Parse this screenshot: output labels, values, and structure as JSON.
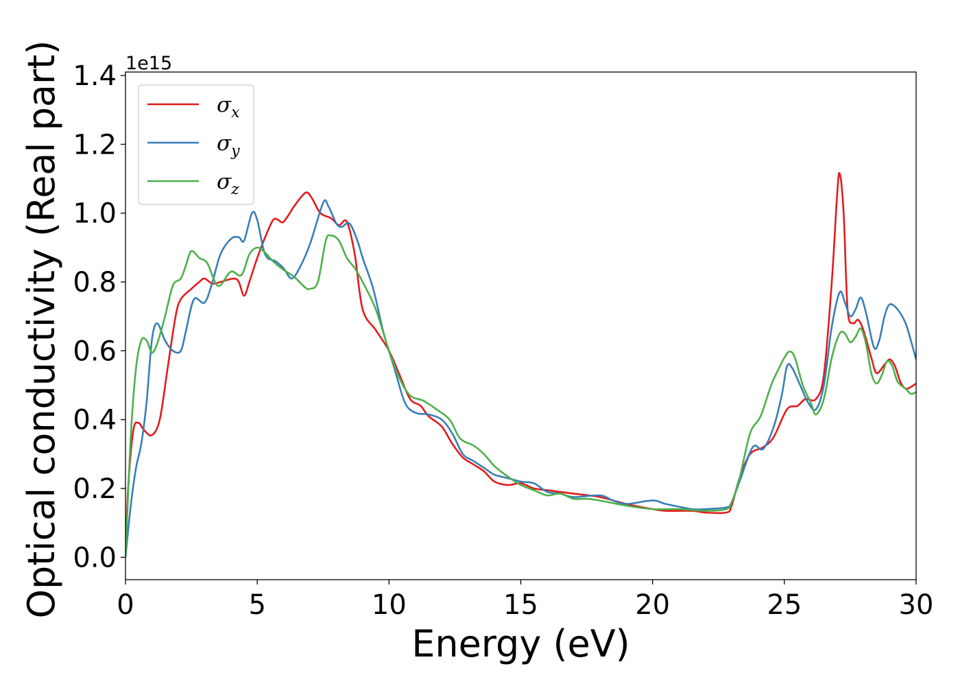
{
  "chart_data": {
    "type": "line",
    "xlabel": "Energy (eV)",
    "ylabel": "Optical conductivity (Real part)",
    "y_offset_text": "1e15",
    "xlim": [
      0,
      30
    ],
    "ylim": [
      -0.065,
      1.41
    ],
    "x_ticks": [
      0,
      5,
      10,
      15,
      20,
      25,
      30
    ],
    "x_tick_labels": [
      "0",
      "5",
      "10",
      "15",
      "20",
      "25",
      "30"
    ],
    "y_ticks": [
      0.0,
      0.2,
      0.4,
      0.6,
      0.8,
      1.0,
      1.2,
      1.4
    ],
    "y_tick_labels": [
      "0.0",
      "0.2",
      "0.4",
      "0.6",
      "0.8",
      "1.0",
      "1.2",
      "1.4"
    ],
    "grid": false,
    "legend": "top-left",
    "series": [
      {
        "name": "σx",
        "legend_main": "σ",
        "legend_sub": "x",
        "color": "#e41a1c",
        "points": [
          [
            0,
            0
          ],
          [
            0.1,
            0.2
          ],
          [
            0.3,
            0.37
          ],
          [
            0.5,
            0.39
          ],
          [
            0.7,
            0.37
          ],
          [
            1.0,
            0.355
          ],
          [
            1.3,
            0.4
          ],
          [
            1.6,
            0.55
          ],
          [
            1.9,
            0.7
          ],
          [
            2.1,
            0.75
          ],
          [
            2.5,
            0.78
          ],
          [
            2.8,
            0.8
          ],
          [
            3.0,
            0.81
          ],
          [
            3.3,
            0.795
          ],
          [
            3.6,
            0.8
          ],
          [
            4.1,
            0.81
          ],
          [
            4.3,
            0.8
          ],
          [
            4.5,
            0.76
          ],
          [
            4.7,
            0.8
          ],
          [
            5.0,
            0.87
          ],
          [
            5.3,
            0.93
          ],
          [
            5.6,
            0.98
          ],
          [
            5.8,
            0.98
          ],
          [
            6.0,
            0.975
          ],
          [
            6.4,
            1.02
          ],
          [
            6.7,
            1.05
          ],
          [
            6.9,
            1.06
          ],
          [
            7.1,
            1.04
          ],
          [
            7.4,
            1.0
          ],
          [
            7.8,
            0.985
          ],
          [
            8.1,
            0.965
          ],
          [
            8.4,
            0.975
          ],
          [
            8.7,
            0.88
          ],
          [
            9.0,
            0.72
          ],
          [
            9.5,
            0.66
          ],
          [
            10.0,
            0.6
          ],
          [
            10.4,
            0.53
          ],
          [
            10.8,
            0.46
          ],
          [
            11.2,
            0.44
          ],
          [
            11.5,
            0.41
          ],
          [
            12.0,
            0.38
          ],
          [
            12.4,
            0.33
          ],
          [
            12.8,
            0.29
          ],
          [
            13.2,
            0.27
          ],
          [
            13.6,
            0.25
          ],
          [
            14.0,
            0.22
          ],
          [
            14.5,
            0.21
          ],
          [
            15.0,
            0.215
          ],
          [
            15.5,
            0.2
          ],
          [
            16.0,
            0.195
          ],
          [
            16.5,
            0.19
          ],
          [
            17.0,
            0.185
          ],
          [
            18.0,
            0.175
          ],
          [
            19.0,
            0.155
          ],
          [
            20.0,
            0.14
          ],
          [
            20.5,
            0.135
          ],
          [
            21.5,
            0.135
          ],
          [
            22.0,
            0.13
          ],
          [
            22.8,
            0.13
          ],
          [
            23.0,
            0.15
          ],
          [
            23.3,
            0.23
          ],
          [
            23.7,
            0.3
          ],
          [
            24.2,
            0.32
          ],
          [
            24.6,
            0.35
          ],
          [
            25.1,
            0.43
          ],
          [
            25.5,
            0.44
          ],
          [
            25.8,
            0.46
          ],
          [
            26.2,
            0.46
          ],
          [
            26.5,
            0.53
          ],
          [
            26.8,
            0.8
          ],
          [
            27.0,
            1.05
          ],
          [
            27.1,
            1.115
          ],
          [
            27.25,
            1.0
          ],
          [
            27.4,
            0.72
          ],
          [
            27.6,
            0.68
          ],
          [
            27.8,
            0.69
          ],
          [
            28.0,
            0.66
          ],
          [
            28.3,
            0.58
          ],
          [
            28.5,
            0.535
          ],
          [
            28.8,
            0.56
          ],
          [
            29.0,
            0.575
          ],
          [
            29.2,
            0.555
          ],
          [
            29.4,
            0.51
          ],
          [
            29.6,
            0.49
          ],
          [
            29.8,
            0.495
          ],
          [
            30.0,
            0.505
          ]
        ]
      },
      {
        "name": "σy",
        "legend_main": "σ",
        "legend_sub": "y",
        "color": "#377eb8",
        "points": [
          [
            0,
            0
          ],
          [
            0.2,
            0.15
          ],
          [
            0.4,
            0.26
          ],
          [
            0.6,
            0.33
          ],
          [
            0.8,
            0.45
          ],
          [
            1.0,
            0.63
          ],
          [
            1.2,
            0.68
          ],
          [
            1.5,
            0.63
          ],
          [
            1.8,
            0.6
          ],
          [
            2.1,
            0.6
          ],
          [
            2.3,
            0.66
          ],
          [
            2.6,
            0.75
          ],
          [
            3.0,
            0.74
          ],
          [
            3.3,
            0.8
          ],
          [
            3.6,
            0.88
          ],
          [
            4.0,
            0.925
          ],
          [
            4.3,
            0.93
          ],
          [
            4.5,
            0.92
          ],
          [
            4.8,
            1.0
          ],
          [
            5.0,
            0.98
          ],
          [
            5.3,
            0.88
          ],
          [
            5.7,
            0.86
          ],
          [
            6.0,
            0.84
          ],
          [
            6.3,
            0.81
          ],
          [
            6.6,
            0.84
          ],
          [
            7.0,
            0.91
          ],
          [
            7.5,
            1.03
          ],
          [
            7.7,
            1.02
          ],
          [
            8.0,
            0.97
          ],
          [
            8.2,
            0.96
          ],
          [
            8.5,
            0.97
          ],
          [
            8.8,
            0.92
          ],
          [
            9.0,
            0.87
          ],
          [
            9.4,
            0.78
          ],
          [
            9.8,
            0.65
          ],
          [
            10.2,
            0.55
          ],
          [
            10.6,
            0.45
          ],
          [
            11.0,
            0.42
          ],
          [
            11.5,
            0.415
          ],
          [
            12.0,
            0.4
          ],
          [
            12.4,
            0.36
          ],
          [
            12.8,
            0.3
          ],
          [
            13.2,
            0.28
          ],
          [
            13.6,
            0.26
          ],
          [
            14.0,
            0.24
          ],
          [
            14.5,
            0.23
          ],
          [
            15.0,
            0.22
          ],
          [
            15.5,
            0.215
          ],
          [
            16.0,
            0.19
          ],
          [
            16.5,
            0.185
          ],
          [
            17.0,
            0.175
          ],
          [
            18.0,
            0.18
          ],
          [
            18.5,
            0.165
          ],
          [
            19.0,
            0.155
          ],
          [
            20.0,
            0.165
          ],
          [
            20.5,
            0.155
          ],
          [
            21.5,
            0.14
          ],
          [
            22.0,
            0.14
          ],
          [
            22.8,
            0.145
          ],
          [
            23.0,
            0.16
          ],
          [
            23.3,
            0.22
          ],
          [
            23.8,
            0.32
          ],
          [
            24.2,
            0.315
          ],
          [
            24.6,
            0.38
          ],
          [
            24.9,
            0.47
          ],
          [
            25.1,
            0.555
          ],
          [
            25.3,
            0.55
          ],
          [
            25.6,
            0.5
          ],
          [
            25.9,
            0.45
          ],
          [
            26.2,
            0.43
          ],
          [
            26.5,
            0.5
          ],
          [
            26.8,
            0.67
          ],
          [
            27.1,
            0.77
          ],
          [
            27.3,
            0.74
          ],
          [
            27.5,
            0.7
          ],
          [
            27.7,
            0.72
          ],
          [
            27.9,
            0.755
          ],
          [
            28.1,
            0.71
          ],
          [
            28.4,
            0.61
          ],
          [
            28.6,
            0.63
          ],
          [
            28.8,
            0.7
          ],
          [
            29.0,
            0.735
          ],
          [
            29.3,
            0.72
          ],
          [
            29.6,
            0.68
          ],
          [
            29.8,
            0.63
          ],
          [
            30.0,
            0.575
          ]
        ]
      },
      {
        "name": "σz",
        "legend_main": "σ",
        "legend_sub": "z",
        "color": "#4daf4a",
        "points": [
          [
            0,
            0
          ],
          [
            0.2,
            0.35
          ],
          [
            0.4,
            0.55
          ],
          [
            0.6,
            0.63
          ],
          [
            0.8,
            0.63
          ],
          [
            1.0,
            0.595
          ],
          [
            1.2,
            0.62
          ],
          [
            1.5,
            0.7
          ],
          [
            1.8,
            0.79
          ],
          [
            2.1,
            0.81
          ],
          [
            2.3,
            0.85
          ],
          [
            2.5,
            0.89
          ],
          [
            2.8,
            0.87
          ],
          [
            3.1,
            0.855
          ],
          [
            3.4,
            0.8
          ],
          [
            3.6,
            0.79
          ],
          [
            4.0,
            0.83
          ],
          [
            4.4,
            0.82
          ],
          [
            4.7,
            0.88
          ],
          [
            5.0,
            0.9
          ],
          [
            5.3,
            0.885
          ],
          [
            5.6,
            0.86
          ],
          [
            6.0,
            0.835
          ],
          [
            6.4,
            0.815
          ],
          [
            6.8,
            0.785
          ],
          [
            7.0,
            0.78
          ],
          [
            7.3,
            0.8
          ],
          [
            7.6,
            0.92
          ],
          [
            7.8,
            0.935
          ],
          [
            8.1,
            0.92
          ],
          [
            8.4,
            0.87
          ],
          [
            8.7,
            0.84
          ],
          [
            9.0,
            0.8
          ],
          [
            9.5,
            0.72
          ],
          [
            10.0,
            0.6
          ],
          [
            10.4,
            0.52
          ],
          [
            10.8,
            0.47
          ],
          [
            11.3,
            0.455
          ],
          [
            11.8,
            0.43
          ],
          [
            12.3,
            0.4
          ],
          [
            12.7,
            0.345
          ],
          [
            13.2,
            0.325
          ],
          [
            13.6,
            0.3
          ],
          [
            14.0,
            0.265
          ],
          [
            14.5,
            0.235
          ],
          [
            15.0,
            0.21
          ],
          [
            15.5,
            0.195
          ],
          [
            16.0,
            0.18
          ],
          [
            16.5,
            0.185
          ],
          [
            17.0,
            0.17
          ],
          [
            17.5,
            0.17
          ],
          [
            18.0,
            0.165
          ],
          [
            19.0,
            0.15
          ],
          [
            20.0,
            0.14
          ],
          [
            21.0,
            0.14
          ],
          [
            22.0,
            0.135
          ],
          [
            22.8,
            0.14
          ],
          [
            23.0,
            0.16
          ],
          [
            23.3,
            0.23
          ],
          [
            23.7,
            0.36
          ],
          [
            24.1,
            0.41
          ],
          [
            24.5,
            0.5
          ],
          [
            24.8,
            0.55
          ],
          [
            25.0,
            0.58
          ],
          [
            25.2,
            0.598
          ],
          [
            25.4,
            0.58
          ],
          [
            25.7,
            0.5
          ],
          [
            26.0,
            0.45
          ],
          [
            26.2,
            0.415
          ],
          [
            26.5,
            0.46
          ],
          [
            26.8,
            0.58
          ],
          [
            27.1,
            0.65
          ],
          [
            27.3,
            0.65
          ],
          [
            27.5,
            0.625
          ],
          [
            27.7,
            0.64
          ],
          [
            27.9,
            0.665
          ],
          [
            28.1,
            0.62
          ],
          [
            28.3,
            0.535
          ],
          [
            28.5,
            0.505
          ],
          [
            28.7,
            0.53
          ],
          [
            28.9,
            0.57
          ],
          [
            29.1,
            0.555
          ],
          [
            29.3,
            0.51
          ],
          [
            29.6,
            0.49
          ],
          [
            29.8,
            0.475
          ],
          [
            30.0,
            0.48
          ]
        ]
      }
    ]
  }
}
